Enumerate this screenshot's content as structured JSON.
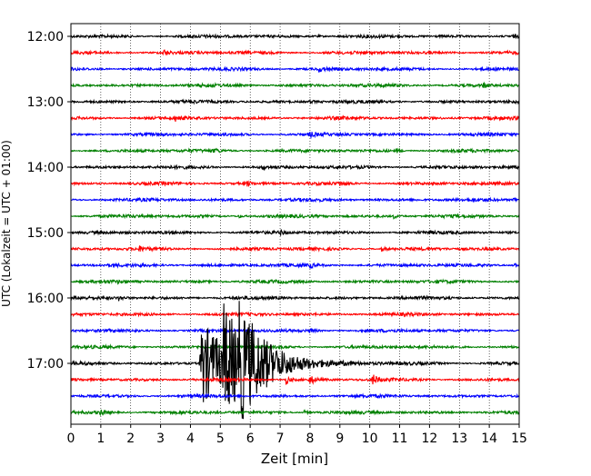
{
  "chart_data": {
    "type": "line",
    "title": "",
    "xlabel": "Zeit  [min]",
    "ylabel": "UTC (Lokalzeit = UTC + 01:00)",
    "xlim": [
      0,
      15
    ],
    "x_ticks": [
      "0",
      "1",
      "2",
      "3",
      "4",
      "5",
      "6",
      "7",
      "8",
      "9",
      "10",
      "11",
      "12",
      "13",
      "14",
      "15"
    ],
    "y_ticks": [
      "12:00",
      "13:00",
      "14:00",
      "15:00",
      "16:00",
      "17:00"
    ],
    "grid": "vertical dotted lines at each minute",
    "trace_interval_minutes": 15,
    "trace_colors": [
      "#000000",
      "#ff0000",
      "#0000ff",
      "#008000"
    ],
    "series": [
      {
        "start": "12:00",
        "events": [
          {
            "t": 8.2,
            "amp": 0.2
          },
          {
            "t": 14.8,
            "amp": 0.2
          }
        ]
      },
      {
        "start": "12:15",
        "events": [
          {
            "t": 3.1,
            "amp": 0.45
          }
        ]
      },
      {
        "start": "12:30",
        "events": [
          {
            "t": 8.3,
            "amp": 0.35
          }
        ]
      },
      {
        "start": "12:45",
        "events": [
          {
            "t": 13.8,
            "amp": 0.3
          }
        ]
      },
      {
        "start": "13:00",
        "events": [
          {
            "t": 8.0,
            "amp": 0.25
          }
        ]
      },
      {
        "start": "13:15",
        "events": [
          {
            "t": 3.5,
            "amp": 0.35
          }
        ]
      },
      {
        "start": "13:30",
        "events": [
          {
            "t": 8.0,
            "amp": 0.3
          }
        ]
      },
      {
        "start": "13:45",
        "events": [
          {
            "t": 4.8,
            "amp": 0.3
          },
          {
            "t": 10.9,
            "amp": 0.25
          }
        ]
      },
      {
        "start": "14:00",
        "events": [
          {
            "t": 6.4,
            "amp": 0.3
          }
        ]
      },
      {
        "start": "14:15",
        "events": [
          {
            "t": 5.9,
            "amp": 0.35
          },
          {
            "t": 9.0,
            "amp": 0.25
          }
        ]
      },
      {
        "start": "14:30",
        "events": [
          {
            "t": 14.8,
            "amp": 0.3
          }
        ]
      },
      {
        "start": "14:45",
        "events": [
          {
            "t": 5.6,
            "amp": 0.25
          },
          {
            "t": 10.8,
            "amp": 0.3
          }
        ]
      },
      {
        "start": "15:00",
        "events": [
          {
            "t": 7.0,
            "amp": 0.35
          }
        ]
      },
      {
        "start": "15:15",
        "events": [
          {
            "t": 2.3,
            "amp": 0.3
          },
          {
            "t": 10.4,
            "amp": 0.3
          }
        ]
      },
      {
        "start": "15:30",
        "events": [
          {
            "t": 8.0,
            "amp": 0.3
          },
          {
            "t": 14.8,
            "amp": 0.4
          }
        ]
      },
      {
        "start": "15:45",
        "events": []
      },
      {
        "start": "16:00",
        "events": [
          {
            "t": 1.6,
            "amp": 0.3
          },
          {
            "t": 5.4,
            "amp": 0.2
          }
        ]
      },
      {
        "start": "16:15",
        "events": []
      },
      {
        "start": "16:30",
        "events": [
          {
            "t": 8.0,
            "amp": 0.45
          }
        ]
      },
      {
        "start": "16:45",
        "events": []
      },
      {
        "start": "17:00",
        "events": [
          {
            "t": 4.35,
            "amp": 6.5
          },
          {
            "t": 5.1,
            "amp": 6.0
          },
          {
            "t": 5.6,
            "amp": 4.5
          }
        ]
      },
      {
        "start": "17:15",
        "events": [
          {
            "t": 7.2,
            "amp": 0.6
          },
          {
            "t": 8.0,
            "amp": 0.8
          },
          {
            "t": 10.1,
            "amp": 0.9
          }
        ]
      },
      {
        "start": "17:30",
        "events": []
      },
      {
        "start": "17:45",
        "events": [
          {
            "t": 1.0,
            "amp": 0.5
          },
          {
            "t": 7.8,
            "amp": 0.3
          }
        ]
      }
    ]
  }
}
